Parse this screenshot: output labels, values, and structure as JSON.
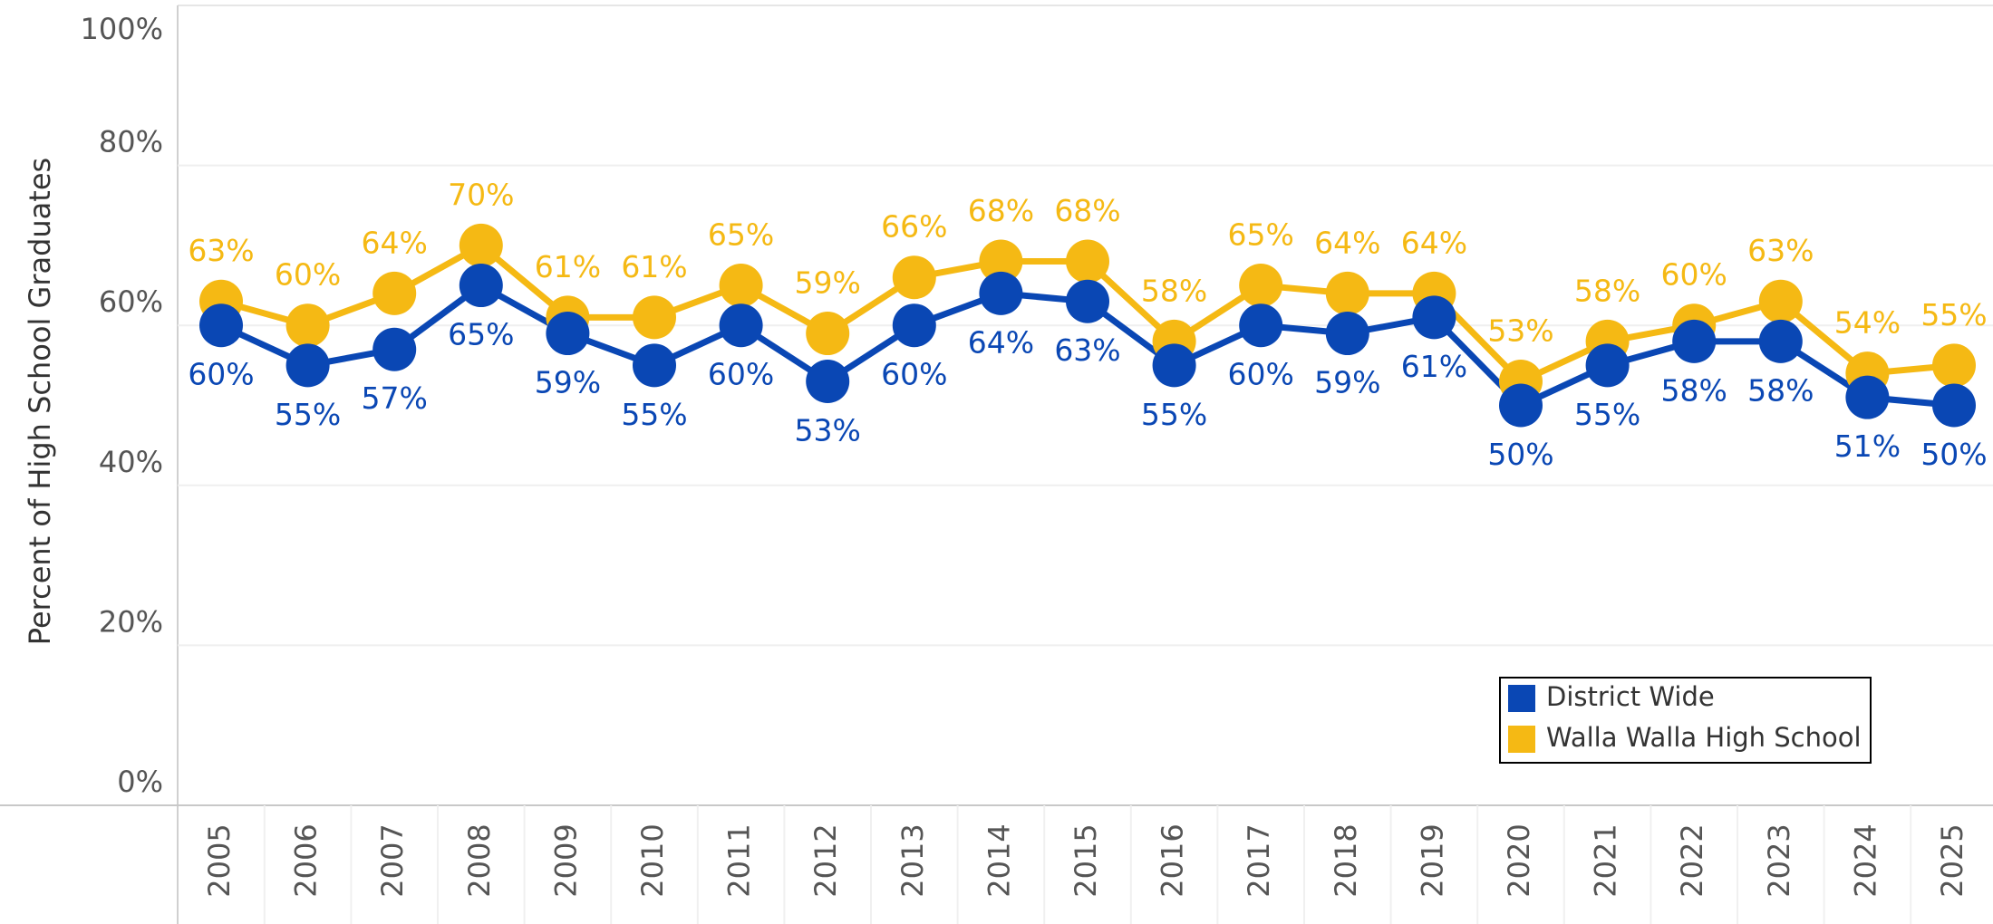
{
  "chart_data": {
    "type": "line",
    "y_label": "Percent of High School Graduates",
    "categories": [
      "2005",
      "2006",
      "2007",
      "2008",
      "2009",
      "2010",
      "2011",
      "2012",
      "2013",
      "2014",
      "2015",
      "2016",
      "2017",
      "2018",
      "2019",
      "2020",
      "2021",
      "2022",
      "2023",
      "2024",
      "2025"
    ],
    "series": [
      {
        "name": "District Wide",
        "color": "#0a47b4",
        "values": [
          60,
          55,
          57,
          65,
          59,
          55,
          60,
          53,
          60,
          64,
          63,
          55,
          60,
          59,
          61,
          50,
          55,
          58,
          58,
          51,
          50
        ],
        "value_labels": [
          "60%",
          "55%",
          "57%",
          "65%",
          "59%",
          "55%",
          "60%",
          "53%",
          "60%",
          "64%",
          "63%",
          "55%",
          "60%",
          "59%",
          "61%",
          "50%",
          "55%",
          "58%",
          "58%",
          "51%",
          "50%"
        ]
      },
      {
        "name": "Walla Walla High School",
        "color": "#f5b914",
        "values": [
          63,
          60,
          64,
          70,
          61,
          61,
          65,
          59,
          66,
          68,
          68,
          58,
          65,
          64,
          64,
          53,
          58,
          60,
          63,
          54,
          55
        ],
        "value_labels": [
          "63%",
          "60%",
          "64%",
          "70%",
          "61%",
          "61%",
          "65%",
          "59%",
          "66%",
          "68%",
          "68%",
          "58%",
          "65%",
          "64%",
          "64%",
          "53%",
          "58%",
          "60%",
          "63%",
          "54%",
          "55%"
        ]
      }
    ],
    "ylim": [
      0,
      100
    ],
    "yticks": [
      {
        "value": 0,
        "label": "0%"
      },
      {
        "value": 20,
        "label": "20%"
      },
      {
        "value": 40,
        "label": "40%"
      },
      {
        "value": 60,
        "label": "60%"
      },
      {
        "value": 80,
        "label": "80%"
      },
      {
        "value": 100,
        "label": "100%"
      }
    ],
    "grid": true,
    "legend": "lower right"
  }
}
